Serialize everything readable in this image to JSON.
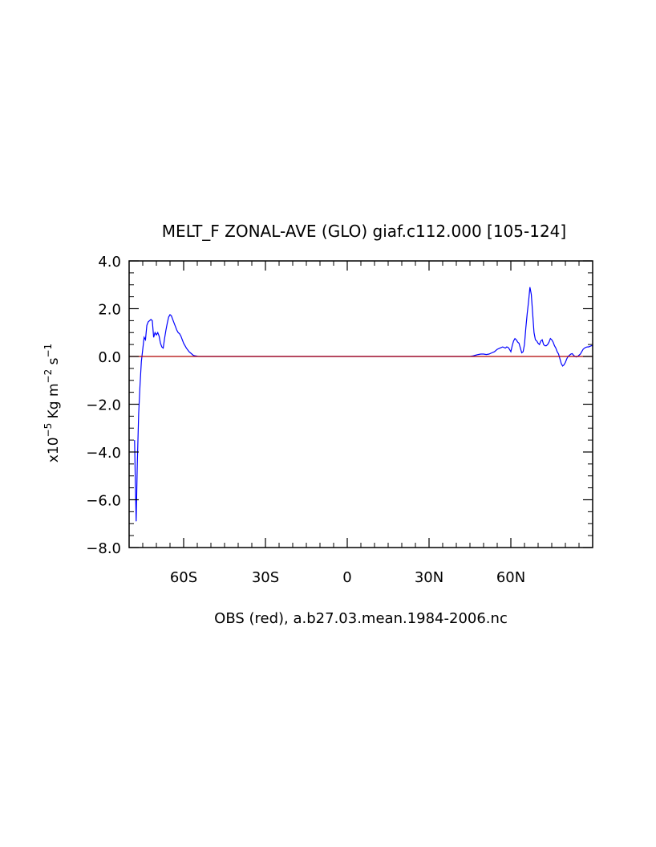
{
  "chart_data": {
    "type": "line",
    "title": "MELT_F ZONAL-AVE (GLO) giaf.c112.000 [105-124]",
    "subtitle": "OBS (red), a.b27.03.mean.1984-2006.nc",
    "ylabel": {
      "prefix": "x10",
      "exp1": "−5",
      "mid": " Kg m",
      "exp2": "−2",
      "tail": " s",
      "exp3": "−1"
    },
    "xlim": [
      -80,
      90
    ],
    "ylim": [
      -8,
      4
    ],
    "xticks": [
      {
        "value": -60,
        "label": "60S"
      },
      {
        "value": -30,
        "label": "30S"
      },
      {
        "value": 0,
        "label": "0"
      },
      {
        "value": 30,
        "label": "30N"
      },
      {
        "value": 60,
        "label": "60N"
      }
    ],
    "yticks": [
      {
        "value": 4,
        "label": "4.0"
      },
      {
        "value": 2,
        "label": "2.0"
      },
      {
        "value": 0,
        "label": "0.0"
      },
      {
        "value": -2,
        "label": "−2.0"
      },
      {
        "value": -4,
        "label": "−4.0"
      },
      {
        "value": -6,
        "label": "−6.0"
      },
      {
        "value": -8,
        "label": "−8.0"
      }
    ],
    "series": [
      {
        "color": "#0000ff",
        "x": [
          -78,
          -77.7,
          -77.4,
          -77,
          -76.5,
          -76,
          -75.5,
          -75,
          -74.5,
          -74,
          -73.5,
          -73,
          -72.5,
          -72,
          -71.5,
          -71,
          -70.5,
          -70,
          -69.5,
          -69,
          -68.5,
          -68,
          -67.5,
          -67,
          -66.5,
          -66,
          -65.5,
          -65,
          -64.5,
          -64,
          -63.5,
          -63,
          -62.5,
          -62,
          -61.5,
          -61,
          -60.5,
          -60,
          -59,
          -58,
          -57,
          -56.5,
          -56,
          -55.5,
          -55,
          -54.5,
          -54,
          -53,
          -52,
          -50,
          -40,
          -30,
          -20,
          -10,
          0,
          10,
          20,
          30,
          40,
          45,
          46,
          47,
          48,
          49,
          50,
          51,
          52,
          53,
          54,
          55,
          56,
          57,
          58,
          58.5,
          59,
          59.5,
          60,
          60.5,
          61,
          61.5,
          62,
          62.5,
          63,
          63.5,
          64,
          64.5,
          65,
          65.5,
          66,
          66.5,
          67,
          67.5,
          68,
          68.5,
          69,
          69.5,
          70,
          70.5,
          71,
          71.5,
          72,
          72.5,
          73,
          73.5,
          74,
          74.5,
          75,
          75.5,
          76,
          76.5,
          77,
          77.5,
          78,
          78.5,
          79,
          79.5,
          80,
          80.5,
          81,
          81.5,
          82,
          82.5,
          83,
          83.5,
          84,
          84.5,
          85,
          85.5,
          86,
          86.5,
          87,
          87.5,
          88,
          88.5,
          89,
          89.5,
          90
        ],
        "y": [
          -3.5,
          -5.3,
          -6.9,
          -4.5,
          -2.4,
          -1.2,
          -0.2,
          0.3,
          0.8,
          0.7,
          1.3,
          1.45,
          1.5,
          1.55,
          1.5,
          0.8,
          1.0,
          0.9,
          1.0,
          0.85,
          0.55,
          0.4,
          0.35,
          0.75,
          1.1,
          1.4,
          1.65,
          1.75,
          1.7,
          1.55,
          1.4,
          1.25,
          1.1,
          1.0,
          0.95,
          0.85,
          0.7,
          0.55,
          0.35,
          0.2,
          0.1,
          0.05,
          0.03,
          0.02,
          0.01,
          0.0,
          0.0,
          0.0,
          0.0,
          0.0,
          0.0,
          0.0,
          0.0,
          0.0,
          0.0,
          0.0,
          0.0,
          0.0,
          0.0,
          0.0,
          0.02,
          0.05,
          0.08,
          0.1,
          0.1,
          0.08,
          0.1,
          0.15,
          0.2,
          0.3,
          0.35,
          0.4,
          0.35,
          0.4,
          0.38,
          0.3,
          0.2,
          0.45,
          0.65,
          0.75,
          0.7,
          0.6,
          0.55,
          0.35,
          0.15,
          0.2,
          0.5,
          1.2,
          1.8,
          2.3,
          2.9,
          2.6,
          1.8,
          1.0,
          0.7,
          0.65,
          0.55,
          0.5,
          0.65,
          0.7,
          0.5,
          0.45,
          0.45,
          0.5,
          0.6,
          0.75,
          0.7,
          0.6,
          0.45,
          0.35,
          0.2,
          0.1,
          -0.1,
          -0.3,
          -0.4,
          -0.35,
          -0.25,
          -0.1,
          0.0,
          0.05,
          0.1,
          0.12,
          0.05,
          0.0,
          -0.02,
          0.0,
          0.05,
          0.1,
          0.2,
          0.3,
          0.35,
          0.38,
          0.4,
          0.4,
          0.42,
          0.45,
          0.45
        ]
      },
      {
        "color": "#b00000",
        "x": [
          -80,
          90
        ],
        "y": [
          0,
          0
        ]
      }
    ],
    "grid": false,
    "legend": false
  }
}
